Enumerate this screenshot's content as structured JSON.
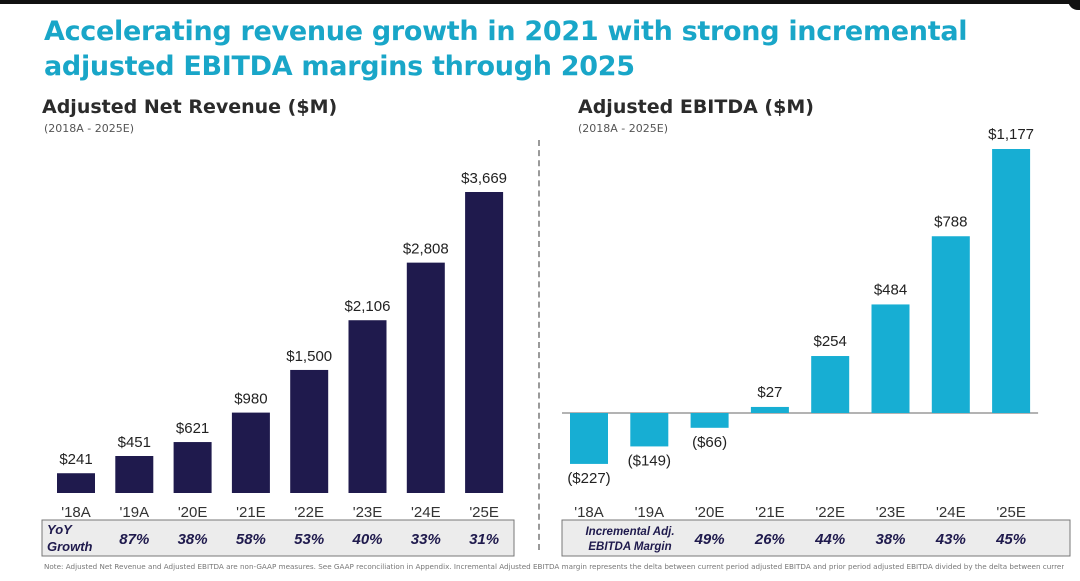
{
  "title": "Accelerating revenue growth in 2021 with strong incremental adjusted EBITDA margins through 2025",
  "note": "Note: Adjusted Net Revenue and Adjusted EBITDA are non-GAAP measures. See GAAP reconciliation in Appendix. Incremental Adjusted EBITDA margin represents the delta between current period adjusted EBITDA and prior period adjusted EBITDA divided by the delta between current period adjusted net revenue and prior period adjusted net revenue.",
  "colors": {
    "title": "#19a6c8",
    "revenue_bar": "#1f1a4d",
    "ebitda_bar": "#17aed3"
  },
  "chart_data": [
    {
      "type": "bar",
      "title": "Adjusted Net Revenue ($M)",
      "subtitle": "(2018A - 2025E)",
      "categories": [
        "'18A",
        "'19A",
        "'20E",
        "'21E",
        "'22E",
        "'23E",
        "'24E",
        "'25E"
      ],
      "values": [
        241,
        451,
        621,
        980,
        1500,
        2106,
        2808,
        3669
      ],
      "data_labels": [
        "$241",
        "$451",
        "$621",
        "$980",
        "$1,500",
        "$2,106",
        "$2,808",
        "$3,669"
      ],
      "ylim": [
        0,
        3669
      ],
      "grid": false,
      "color": "#1f1a4d",
      "table": {
        "label_line1": "YoY",
        "label_line2": "Growth",
        "values": [
          "87%",
          "38%",
          "58%",
          "53%",
          "40%",
          "33%",
          "31%"
        ]
      }
    },
    {
      "type": "bar",
      "title": "Adjusted EBITDA ($M)",
      "subtitle": "(2018A - 2025E)",
      "categories": [
        "'18A",
        "'19A",
        "'20E",
        "'21E",
        "'22E",
        "'23E",
        "'24E",
        "'25E"
      ],
      "values": [
        -227,
        -149,
        -66,
        27,
        254,
        484,
        788,
        1177
      ],
      "data_labels": [
        "($227)",
        "($149)",
        "($66)",
        "$27",
        "$254",
        "$484",
        "$788",
        "$1,177"
      ],
      "ylim": [
        -227,
        1177
      ],
      "grid": false,
      "color": "#17aed3",
      "table": {
        "label_line1": "Incremental Adj.",
        "label_line2": "EBITDA Margin",
        "values": [
          "49%",
          "26%",
          "44%",
          "38%",
          "43%",
          "45%"
        ]
      }
    }
  ]
}
